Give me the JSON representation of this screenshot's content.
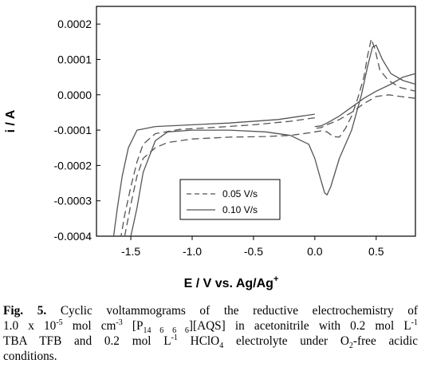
{
  "chart_data": {
    "type": "line",
    "title": "",
    "xlabel": "E / V vs. Ag/Ag",
    "xlabel_superscript": "+",
    "ylabel": "i / A",
    "xlim": [
      -1.78,
      0.82
    ],
    "ylim": [
      -0.0004,
      0.00025
    ],
    "x_ticks": [
      -1.5,
      -1.0,
      -0.5,
      0.0,
      0.5
    ],
    "x_tick_labels": [
      "-1.5",
      "-1.0",
      "-0.5",
      "0.0",
      "0.5"
    ],
    "y_ticks": [
      -0.0004,
      -0.0003,
      -0.0002,
      -0.0001,
      0.0,
      0.0001,
      0.0002
    ],
    "y_tick_labels": [
      "-0.0004",
      "-0.0003",
      "-0.0002",
      "-0.0001",
      "0.0000",
      "0.0001",
      "0.0002"
    ],
    "grid": false,
    "legend_position": "bottom-center",
    "series": [
      {
        "name": "0.05 V/s",
        "line_style": "dashed",
        "color": "#555555",
        "points": [
          [
            0.0,
            -6.5e-05
          ],
          [
            -0.2,
            -7.5e-05
          ],
          [
            -0.5,
            -8.5e-05
          ],
          [
            -0.8,
            -9.2e-05
          ],
          [
            -1.1,
            -9.8e-05
          ],
          [
            -1.3,
            -0.00011
          ],
          [
            -1.4,
            -0.00014
          ],
          [
            -1.45,
            -0.00019
          ],
          [
            -1.5,
            -0.00026
          ],
          [
            -1.55,
            -0.00034
          ],
          [
            -1.58,
            -0.0004
          ],
          null,
          [
            -1.55,
            -0.0004
          ],
          [
            -1.5,
            -0.00031
          ],
          [
            -1.45,
            -0.00023
          ],
          [
            -1.4,
            -0.00018
          ],
          [
            -1.3,
            -0.00015
          ],
          [
            -1.2,
            -0.000135
          ],
          [
            -1.0,
            -0.000125
          ],
          [
            -0.7,
            -0.00012
          ],
          [
            -0.4,
            -0.000118
          ],
          [
            -0.2,
            -0.000115
          ],
          [
            -0.05,
            -0.000108
          ],
          [
            0.05,
            -0.000102
          ],
          [
            0.1,
            -0.000105
          ],
          [
            0.15,
            -0.000118
          ],
          [
            0.2,
            -0.00012
          ],
          [
            0.25,
            -9.5e-05
          ],
          [
            0.3,
            -6e-05
          ],
          [
            0.35,
            -1e-05
          ],
          [
            0.4,
            5e-05
          ],
          [
            0.43,
            0.00011
          ],
          [
            0.46,
            0.000158
          ],
          [
            0.49,
            0.00013
          ],
          [
            0.53,
            7e-05
          ],
          [
            0.6,
            4e-05
          ],
          [
            0.7,
            2e-05
          ],
          [
            0.82,
            1e-05
          ],
          null,
          [
            0.82,
            -1e-05
          ],
          [
            0.7,
            -5e-06
          ],
          [
            0.6,
            0.0
          ],
          [
            0.5,
            -5e-06
          ],
          [
            0.4,
            -2.5e-05
          ],
          [
            0.3,
            -5e-05
          ],
          [
            0.2,
            -7e-05
          ],
          [
            0.1,
            -8.5e-05
          ],
          [
            0.05,
            -9.3e-05
          ],
          [
            0.0,
            -9.5e-05
          ]
        ]
      },
      {
        "name": "0.10 V/s",
        "line_style": "solid",
        "color": "#555555",
        "points": [
          [
            0.0,
            -5.5e-05
          ],
          [
            -0.3,
            -7e-05
          ],
          [
            -0.7,
            -8e-05
          ],
          [
            -1.0,
            -8.5e-05
          ],
          [
            -1.3,
            -9e-05
          ],
          [
            -1.45,
            -0.0001
          ],
          [
            -1.52,
            -0.00015
          ],
          [
            -1.57,
            -0.00023
          ],
          [
            -1.61,
            -0.00032
          ],
          [
            -1.64,
            -0.0004
          ],
          null,
          [
            -1.5,
            -0.0004
          ],
          [
            -1.45,
            -0.00032
          ],
          [
            -1.4,
            -0.00022
          ],
          [
            -1.3,
            -0.00013
          ],
          [
            -1.2,
            -0.000105
          ],
          [
            -1.0,
            -0.0001
          ],
          [
            -0.7,
            -0.0001
          ],
          [
            -0.4,
            -0.000105
          ],
          [
            -0.2,
            -0.000115
          ],
          [
            -0.05,
            -0.00014
          ],
          [
            0.0,
            -0.00018
          ],
          [
            0.04,
            -0.00023
          ],
          [
            0.08,
            -0.000278
          ],
          [
            0.1,
            -0.000283
          ],
          [
            0.13,
            -0.00026
          ],
          [
            0.2,
            -0.00018
          ],
          [
            0.3,
            -0.0001
          ],
          [
            0.38,
            0.0
          ],
          [
            0.43,
            8e-05
          ],
          [
            0.47,
            0.000135
          ],
          [
            0.5,
            0.00014
          ],
          [
            0.55,
            0.0001
          ],
          [
            0.62,
            6e-05
          ],
          [
            0.72,
            4e-05
          ],
          [
            0.82,
            3e-05
          ],
          null,
          [
            0.82,
            6e-05
          ],
          [
            0.72,
            5e-05
          ],
          [
            0.62,
            3e-05
          ],
          [
            0.5,
            1e-05
          ],
          [
            0.4,
            -1e-05
          ],
          [
            0.3,
            -3.5e-05
          ],
          [
            0.2,
            -6e-05
          ],
          [
            0.1,
            -8e-05
          ],
          [
            0.05,
            -8.8e-05
          ],
          [
            0.0,
            -9e-05
          ]
        ]
      }
    ]
  },
  "caption": {
    "label": "Fig. 5.",
    "lines": [
      [
        {
          "t": " Cyclic voltammograms of the reductive electrochemistry of"
        }
      ],
      [
        {
          "t": "1.0 x 10"
        },
        {
          "t": "-5",
          "sup": true
        },
        {
          "t": " mol cm"
        },
        {
          "t": "-3",
          "sup": true
        },
        {
          "t": " [P"
        },
        {
          "t": "14 6 6 6",
          "sub": true
        },
        {
          "t": "][AQS] in acetonitrile with 0.2 mol L"
        },
        {
          "t": "-1",
          "sup": true
        }
      ],
      [
        {
          "t": "TBA TFB and 0.2 mol L"
        },
        {
          "t": "-1",
          "sup": true
        },
        {
          "t": " HClO"
        },
        {
          "t": "4",
          "sub": true
        },
        {
          "t": " electrolyte under O"
        },
        {
          "t": "2",
          "sub": true
        },
        {
          "t": "-free acidic"
        }
      ],
      [
        {
          "t": "conditions."
        }
      ]
    ]
  }
}
